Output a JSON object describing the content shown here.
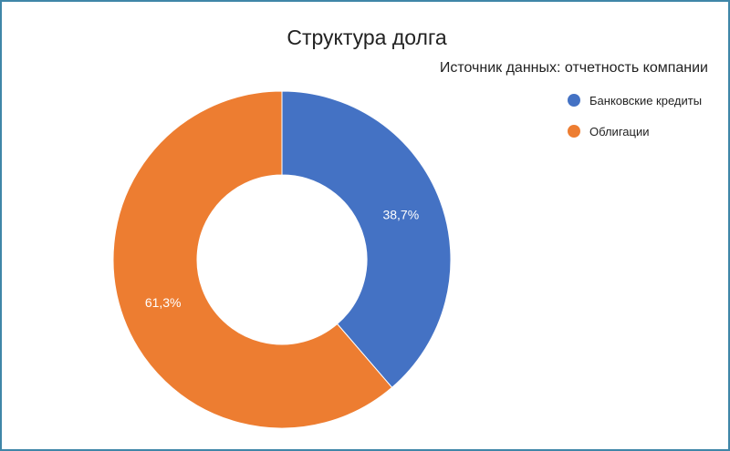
{
  "chart_data": {
    "type": "pie",
    "title": "Структура долга",
    "subtitle": "Источник данных: отчетность компании",
    "donut": true,
    "categories": [
      "Банковские кредиты",
      "Облигации"
    ],
    "values": [
      38.7,
      61.3
    ],
    "labels": [
      "38,7%",
      "61,3%"
    ],
    "colors": [
      "#4472c4",
      "#ed7d31"
    ],
    "legend": "right"
  }
}
